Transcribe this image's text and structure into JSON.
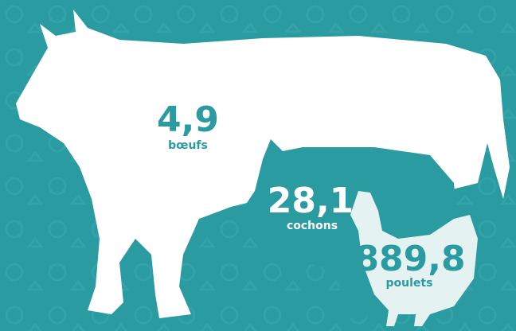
{
  "items": [
    {
      "value": "4,9",
      "label": "bœufs"
    },
    {
      "value": "28,1",
      "label": "cochons"
    },
    {
      "value": "889,8",
      "label": "poulets"
    }
  ]
}
